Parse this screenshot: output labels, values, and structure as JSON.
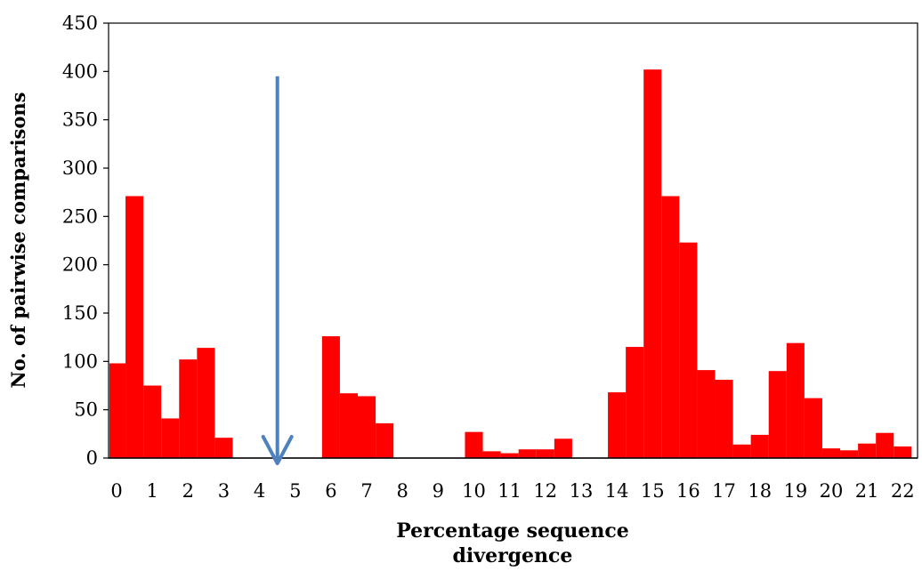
{
  "chart_data": {
    "type": "bar",
    "xlabel_lines": [
      "Percentage sequence",
      "divergence"
    ],
    "ylabel": "No. of pairwise comparisons",
    "ylim": [
      0,
      450
    ],
    "yticks": [
      0,
      50,
      100,
      150,
      200,
      250,
      300,
      350,
      400,
      450
    ],
    "xlim": [
      0,
      22
    ],
    "xticks": [
      0,
      1,
      2,
      3,
      4,
      5,
      6,
      7,
      8,
      9,
      10,
      11,
      12,
      13,
      14,
      15,
      16,
      17,
      18,
      19,
      20,
      21,
      22
    ],
    "bin_width": 0.5,
    "bins": [
      {
        "start": 0.0,
        "value": 98
      },
      {
        "start": 0.5,
        "value": 271
      },
      {
        "start": 1.0,
        "value": 75
      },
      {
        "start": 1.5,
        "value": 41
      },
      {
        "start": 2.0,
        "value": 102
      },
      {
        "start": 2.5,
        "value": 114
      },
      {
        "start": 3.0,
        "value": 21
      },
      {
        "start": 6.0,
        "value": 126
      },
      {
        "start": 6.5,
        "value": 67
      },
      {
        "start": 7.0,
        "value": 64
      },
      {
        "start": 7.5,
        "value": 36
      },
      {
        "start": 10.0,
        "value": 27
      },
      {
        "start": 10.5,
        "value": 7
      },
      {
        "start": 11.0,
        "value": 5
      },
      {
        "start": 11.5,
        "value": 9
      },
      {
        "start": 12.0,
        "value": 9
      },
      {
        "start": 12.5,
        "value": 20
      },
      {
        "start": 14.0,
        "value": 68
      },
      {
        "start": 14.5,
        "value": 115
      },
      {
        "start": 15.0,
        "value": 402
      },
      {
        "start": 15.5,
        "value": 271
      },
      {
        "start": 16.0,
        "value": 223
      },
      {
        "start": 16.5,
        "value": 91
      },
      {
        "start": 17.0,
        "value": 81
      },
      {
        "start": 17.5,
        "value": 14
      },
      {
        "start": 18.0,
        "value": 24
      },
      {
        "start": 18.5,
        "value": 90
      },
      {
        "start": 19.0,
        "value": 119
      },
      {
        "start": 19.5,
        "value": 62
      },
      {
        "start": 20.0,
        "value": 10
      },
      {
        "start": 20.5,
        "value": 8
      },
      {
        "start": 21.0,
        "value": 15
      },
      {
        "start": 21.5,
        "value": 26
      },
      {
        "start": 22.0,
        "value": 12
      }
    ],
    "arrow": {
      "x": 4.5,
      "y_top": 395,
      "y_bottom": 0
    },
    "colors": {
      "bar": "#ff0000",
      "arrow": "#4f81bd",
      "axis": "#000000"
    }
  }
}
